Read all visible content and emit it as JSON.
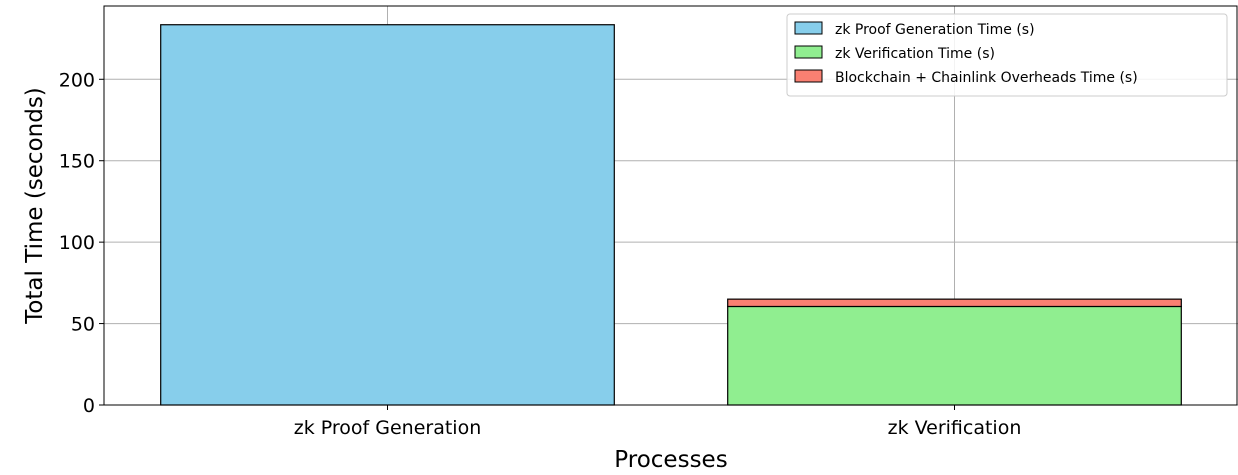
{
  "chart_data": {
    "type": "bar",
    "stacked": true,
    "categories": [
      "zk Proof Generation",
      "zk Verification"
    ],
    "series": [
      {
        "name": "zk Proof Generation Time (s)",
        "values": [
          233.5,
          0
        ],
        "color": "#87ceeb"
      },
      {
        "name": "zk Verification Time (s)",
        "values": [
          0,
          60.5
        ],
        "color": "#90ee90"
      },
      {
        "name": "Blockchain + Chainlink Overheads Time (s)",
        "values": [
          0,
          4.5
        ],
        "color": "#fa8072"
      }
    ],
    "xlabel": "Processes",
    "ylabel": "Total Time (seconds)",
    "ylim": [
      0,
      245
    ],
    "yticks": [
      0,
      50,
      100,
      150,
      200
    ],
    "grid": true,
    "legend_position": "top-right"
  }
}
